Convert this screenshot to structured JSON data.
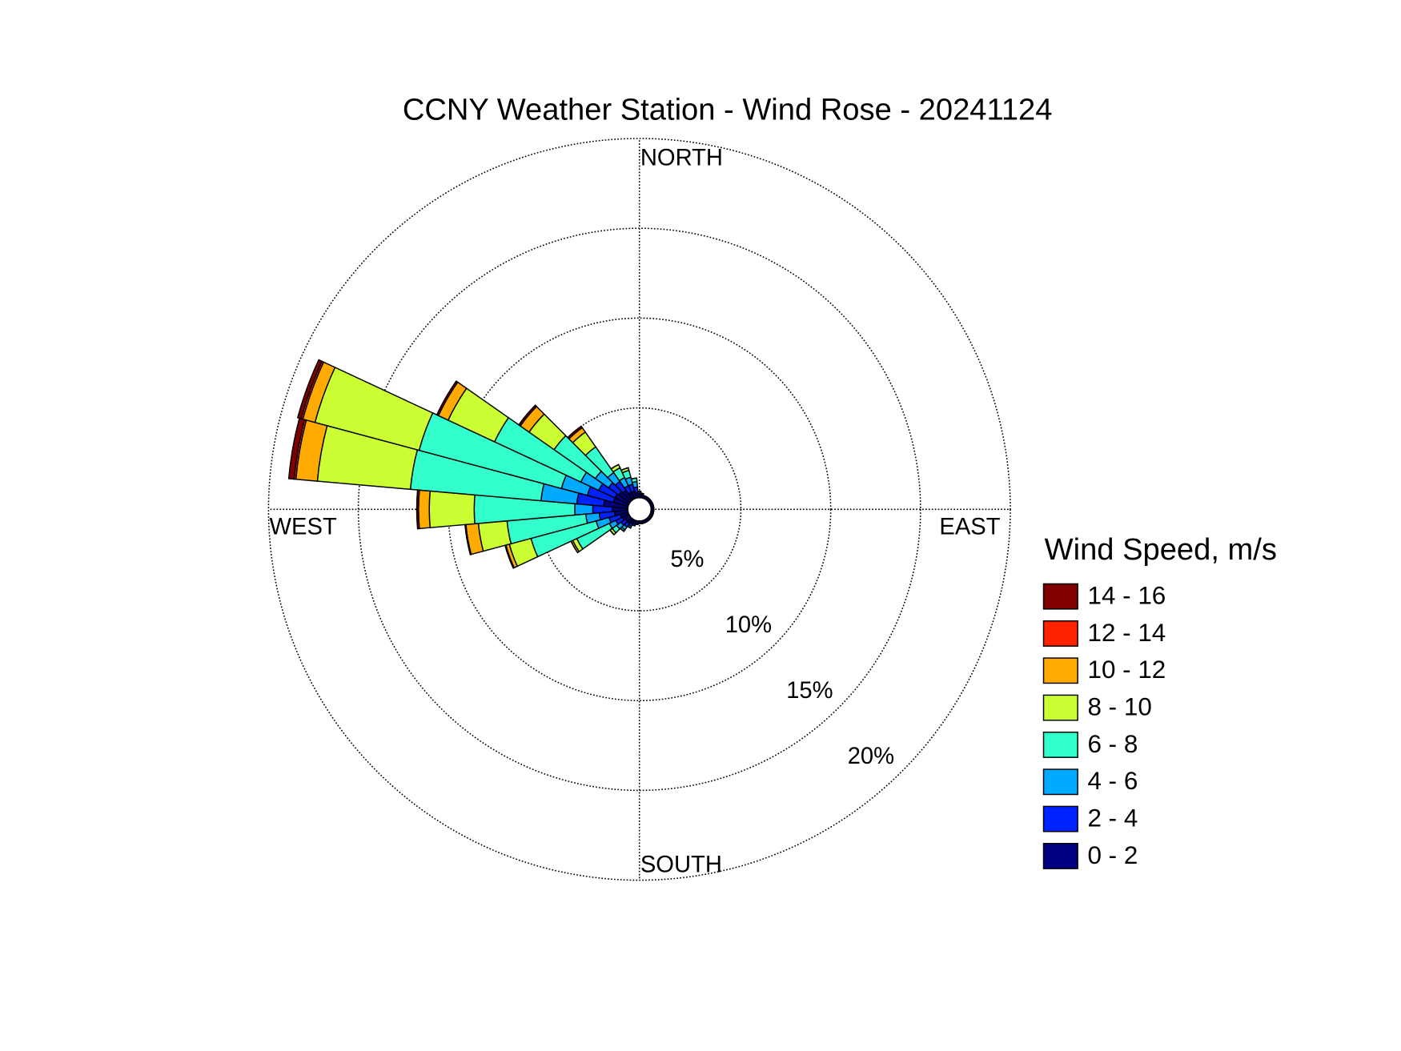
{
  "chart_data": {
    "type": "windrose",
    "title": "CCNY Weather Station - Wind Rose - 20241124",
    "direction_labels": {
      "north": "NORTH",
      "east": "EAST",
      "south": "SOUTH",
      "west": "WEST"
    },
    "legend_title": "Wind Speed, m/s",
    "x": [
      0,
      10,
      20,
      30,
      40,
      50,
      60,
      70,
      80,
      90,
      100,
      110,
      120,
      130,
      140,
      150,
      160,
      170,
      180,
      190,
      200,
      210,
      220,
      230,
      240,
      250,
      260,
      270,
      280,
      290,
      300,
      310,
      320,
      330,
      340,
      350
    ],
    "rlim": [
      0,
      20
    ],
    "rticks": [
      {
        "value": 5,
        "label": "5%"
      },
      {
        "value": 10,
        "label": "10%"
      },
      {
        "value": 15,
        "label": "15%"
      },
      {
        "value": 20,
        "label": "20%"
      }
    ],
    "grid": true,
    "series": [
      {
        "name": "0 - 2",
        "color": "#000080",
        "values": [
          0.25,
          0.2,
          0.15,
          0.15,
          0.15,
          0.15,
          0.15,
          0.15,
          0.15,
          0.15,
          0.15,
          0.15,
          0.15,
          0.15,
          0.15,
          0.15,
          0.15,
          0.15,
          0.15,
          0.2,
          0.2,
          0.25,
          0.3,
          0.3,
          0.4,
          0.45,
          0.75,
          0.85,
          1.35,
          0.85,
          0.85,
          0.75,
          0.65,
          0.4,
          0.4,
          0.3
        ]
      },
      {
        "name": "2 - 4",
        "color": "#0022ff",
        "values": [
          0.1,
          0.05,
          0,
          0,
          0,
          0,
          0,
          0,
          0,
          0,
          0,
          0,
          0,
          0,
          0,
          0,
          0,
          0,
          0,
          0,
          0.1,
          0.15,
          0.25,
          0.3,
          0.4,
          0.65,
          0.85,
          1.1,
          1.5,
          1.5,
          1.0,
          0.7,
          0.6,
          0.4,
          0.4,
          0.3
        ]
      },
      {
        "name": "4 - 6",
        "color": "#00aaff",
        "values": [
          0,
          0,
          0,
          0,
          0,
          0,
          0,
          0,
          0,
          0,
          0,
          0,
          0,
          0,
          0,
          0,
          0,
          0,
          0,
          0,
          0,
          0.1,
          0.2,
          0.3,
          0.4,
          0.75,
          0.75,
          1.0,
          2.0,
          1.5,
          1.1,
          0.9,
          0.6,
          0.5,
          0.4,
          0.3
        ]
      },
      {
        "name": "6 - 8",
        "color": "#33ffcc",
        "values": [
          0,
          0,
          0,
          0,
          0,
          0,
          0,
          0,
          0,
          0,
          0,
          0,
          0,
          0,
          0,
          0,
          0,
          0,
          0,
          0,
          0,
          0,
          0.1,
          0.3,
          2.0,
          3.75,
          4.4,
          5.6,
          7.3,
          8.2,
          5.3,
          2.8,
          1.75,
          0.6,
          0.4,
          0.2
        ]
      },
      {
        "name": "8 - 10",
        "color": "#ccff33",
        "values": [
          0,
          0,
          0,
          0,
          0,
          0,
          0,
          0,
          0,
          0,
          0,
          0,
          0,
          0,
          0,
          0,
          0,
          0,
          0,
          0,
          0,
          0,
          0,
          0.15,
          0.25,
          1.25,
          1.6,
          2.5,
          5.2,
          6.0,
          2.85,
          1.7,
          1.0,
          0.2,
          0.15,
          0
        ]
      },
      {
        "name": "10 - 12",
        "color": "#ffaa00",
        "values": [
          0,
          0,
          0,
          0,
          0,
          0,
          0,
          0,
          0,
          0,
          0,
          0,
          0,
          0,
          0,
          0,
          0,
          0,
          0,
          0,
          0,
          0,
          0,
          0,
          0.1,
          0.2,
          0.7,
          0.6,
          1.2,
          0.7,
          0.6,
          0.6,
          0.3,
          0,
          0,
          0
        ]
      },
      {
        "name": "12 - 14",
        "color": "#ff2200",
        "values": [
          0,
          0,
          0,
          0,
          0,
          0,
          0,
          0,
          0,
          0,
          0,
          0,
          0,
          0,
          0,
          0,
          0,
          0,
          0,
          0,
          0,
          0,
          0,
          0,
          0,
          0,
          0,
          0,
          0.1,
          0.1,
          0,
          0,
          0,
          0,
          0,
          0
        ]
      },
      {
        "name": "14 - 16",
        "color": "#800000",
        "values": [
          0,
          0,
          0,
          0,
          0,
          0,
          0,
          0,
          0,
          0,
          0,
          0,
          0,
          0,
          0,
          0,
          0,
          0,
          0,
          0,
          0,
          0,
          0,
          0,
          0,
          0.05,
          0.05,
          0.1,
          0.3,
          0.2,
          0.1,
          0.1,
          0.1,
          0,
          0,
          0
        ]
      }
    ]
  }
}
